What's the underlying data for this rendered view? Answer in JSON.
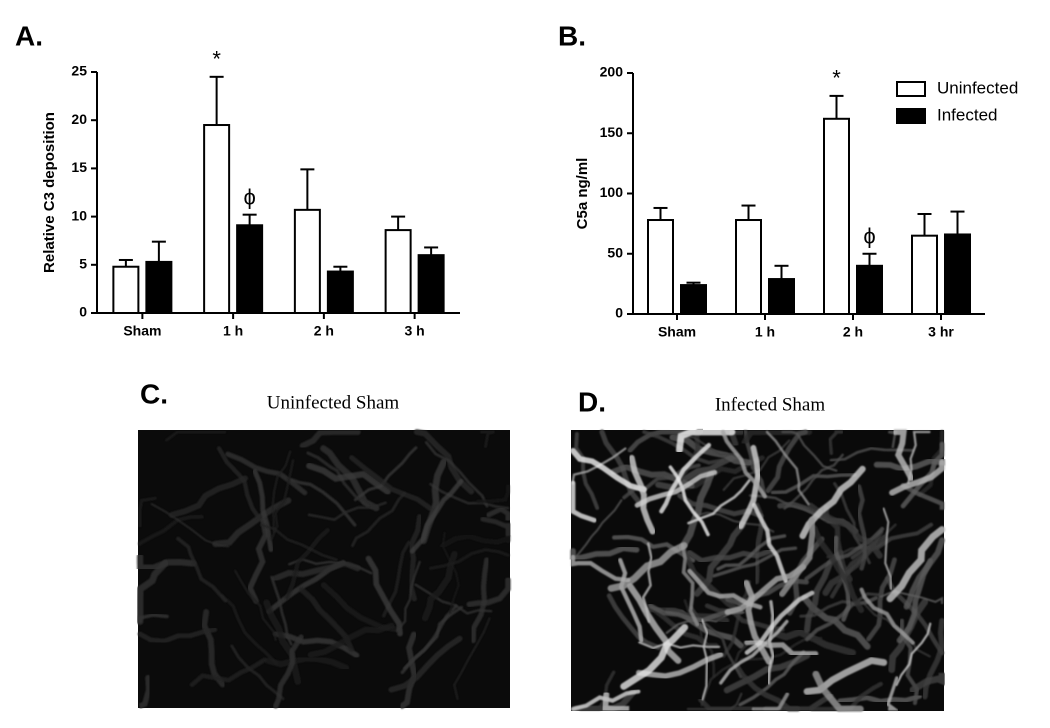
{
  "chart_data": [
    {
      "type": "bar",
      "panel_label": "A.",
      "ylabel": "Relative C3 deposition",
      "categories": [
        "Sham",
        "1 h",
        "2 h",
        "3 h"
      ],
      "ylim": [
        0,
        25
      ],
      "yticks": [
        0,
        5,
        10,
        15,
        20,
        25
      ],
      "series": [
        {
          "color": "#ffffff",
          "values": [
            4.8,
            19.5,
            10.7,
            8.6
          ],
          "errors": [
            0.7,
            5.0,
            4.2,
            1.4
          ],
          "annotations": [
            null,
            "*",
            null,
            null
          ]
        },
        {
          "color": "#000000",
          "values": [
            5.3,
            9.1,
            4.3,
            6.0
          ],
          "errors": [
            2.1,
            1.1,
            0.5,
            0.8
          ],
          "annotations": [
            null,
            "ϕ",
            null,
            null
          ]
        }
      ]
    },
    {
      "type": "bar",
      "panel_label": "B.",
      "ylabel": "C5a ng/ml",
      "categories": [
        "Sham",
        "1 h",
        "2 h",
        "3 hr"
      ],
      "ylim": [
        0,
        200
      ],
      "yticks": [
        0,
        50,
        100,
        150,
        200
      ],
      "legend": "upper right",
      "series": [
        {
          "name": "Uninfected",
          "color": "#ffffff",
          "values": [
            78,
            78,
            162,
            65
          ],
          "errors": [
            10,
            12,
            19,
            18
          ],
          "annotations": [
            null,
            null,
            "*",
            null
          ]
        },
        {
          "name": "Infected",
          "color": "#000000",
          "values": [
            24,
            29,
            40,
            66
          ],
          "errors": [
            2,
            11,
            10,
            19
          ],
          "annotations": [
            null,
            null,
            "ϕ",
            null
          ]
        }
      ]
    }
  ],
  "images": [
    {
      "panel_label": "C.",
      "caption": "Uninfected Sham"
    },
    {
      "panel_label": "D.",
      "caption": "Infected Sham"
    }
  ]
}
